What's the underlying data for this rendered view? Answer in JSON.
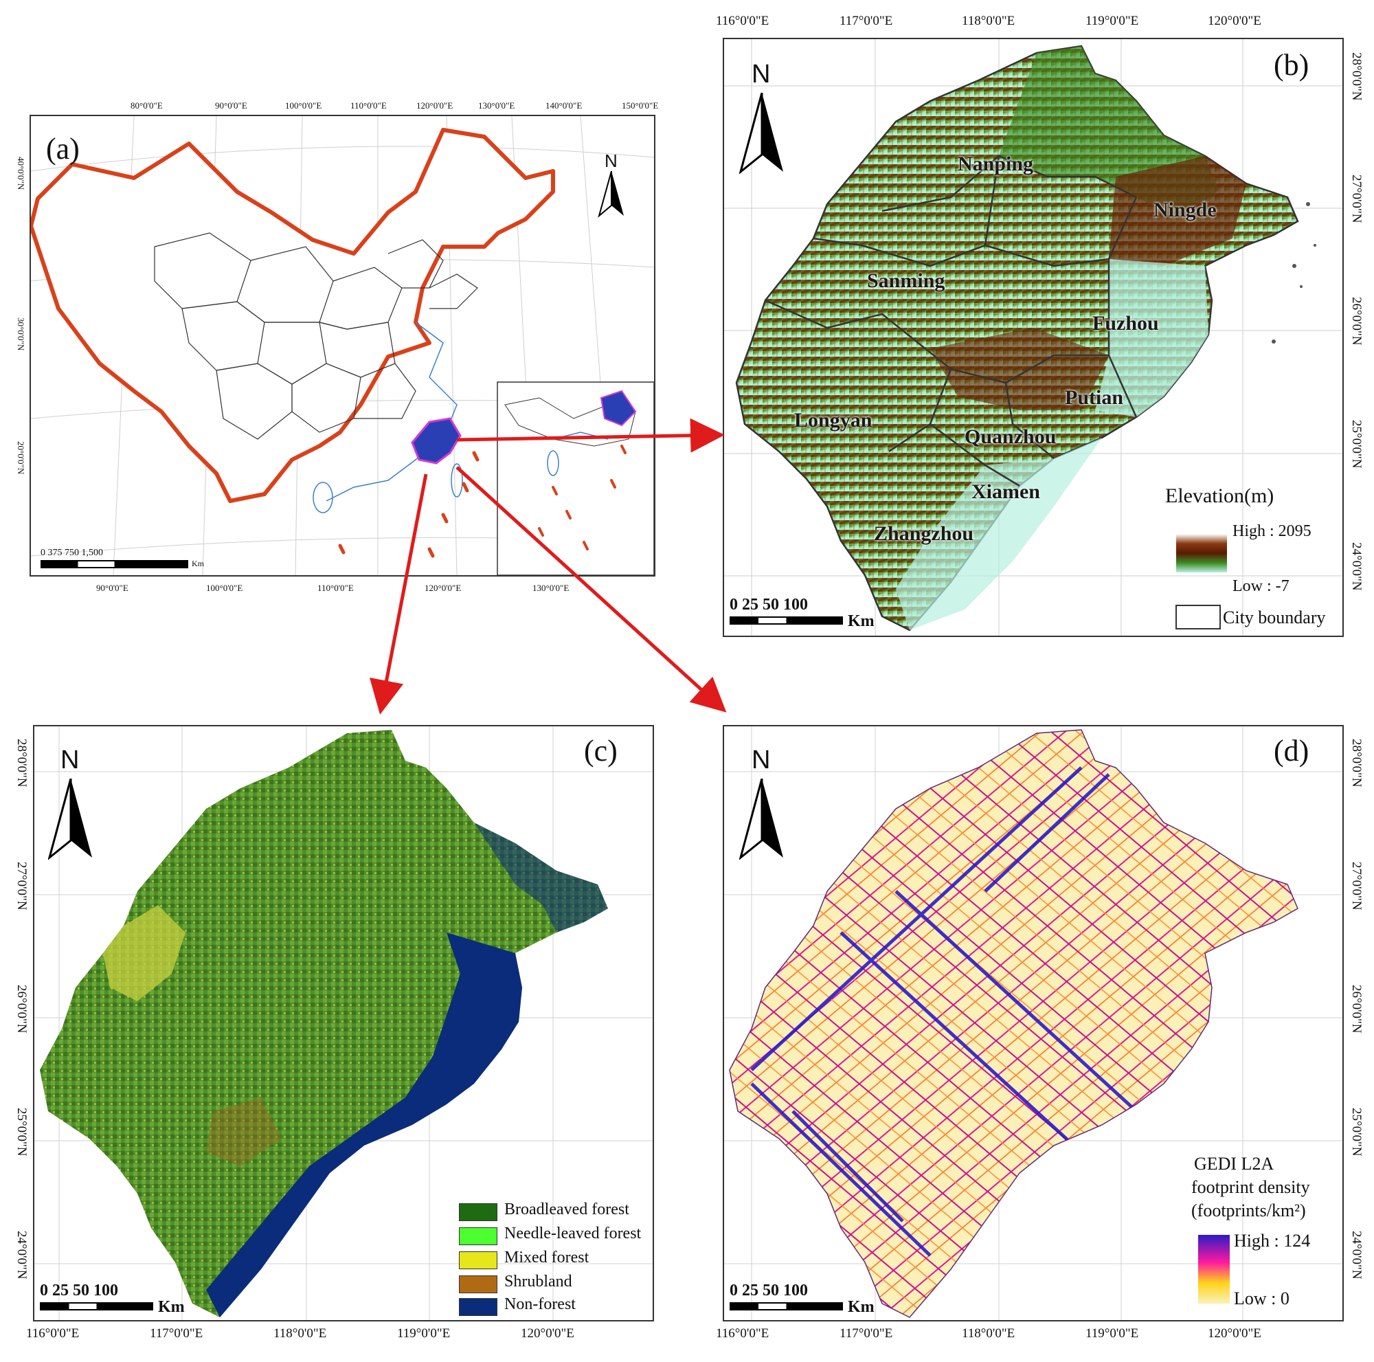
{
  "panel_a": {
    "label": "(a)",
    "top_ticks": [
      "80°0'0\"E",
      "90°0'0\"E",
      "100°0'0\"E",
      "110°0'0\"E",
      "120°0'0\"E",
      "130°0'0\"E",
      "140°0'0\"E",
      "150°0'0\"E"
    ],
    "bottom_ticks": [
      "90°0'0\"E",
      "100°0'0\"E",
      "110°0'0\"E",
      "120°0'0\"E",
      "130°0'0\"E"
    ],
    "left_ticks": [
      "40°0'0\"N",
      "30°0'0\"N",
      "20°0'0\"N"
    ],
    "north": "N",
    "scale_numbers": "0    375   750        1,500",
    "scale_unit": "Km"
  },
  "panel_b": {
    "label": "(b)",
    "top_ticks": [
      "116°0'0\"E",
      "117°0'0\"E",
      "118°0'0\"E",
      "119°0'0\"E",
      "120°0'0\"E"
    ],
    "right_ticks": [
      "28°0'0\"N",
      "27°0'0\"N",
      "26°0'0\"N",
      "25°0'0\"N",
      "24°0'0\"N"
    ],
    "north": "N",
    "cities": [
      "Nanping",
      "Ningde",
      "Sanming",
      "Fuzhou",
      "Putian",
      "Longyan",
      "Quanzhou",
      "Xiamen",
      "Zhangzhou"
    ],
    "legend_title": "Elevation(m)",
    "legend_high": "High : 2095",
    "legend_low": "Low : -7",
    "legend_boundary": "City boundary",
    "scale_numbers": "0  25  50        100",
    "scale_unit": "Km"
  },
  "panel_c": {
    "label": "(c)",
    "bottom_ticks": [
      "116°0'0\"E",
      "117°0'0\"E",
      "118°0'0\"E",
      "119°0'0\"E",
      "120°0'0\"E"
    ],
    "left_ticks": [
      "28°0'0\"N",
      "27°0'0\"N",
      "26°0'0\"N",
      "25°0'0\"N",
      "24°0'0\"N"
    ],
    "north": "N",
    "legend": [
      {
        "label": "Broadleaved forest",
        "color": "#1e6b12"
      },
      {
        "label": "Needle-leaved forest",
        "color": "#4dff2e"
      },
      {
        "label": "Mixed forest",
        "color": "#e6e61a"
      },
      {
        "label": "Shrubland",
        "color": "#b06a14"
      },
      {
        "label": "Non-forest",
        "color": "#0b2c7a"
      }
    ],
    "scale_numbers": "0  25  50        100",
    "scale_unit": "Km"
  },
  "panel_d": {
    "label": "(d)",
    "bottom_ticks": [
      "116°0'0\"E",
      "117°0'0\"E",
      "118°0'0\"E",
      "119°0'0\"E",
      "120°0'0\"E"
    ],
    "right_ticks": [
      "28°0'0\"N",
      "27°0'0\"N",
      "26°0'0\"N",
      "25°0'0\"N",
      "24°0'0\"N"
    ],
    "north": "N",
    "legend_title_1": "GEDI L2A",
    "legend_title_2": "footprint density",
    "legend_title_3": "(footprints/km²)",
    "legend_high": "High : 124",
    "legend_low": "Low : 0",
    "scale_numbers": "0  25  50        100",
    "scale_unit": "Km"
  },
  "colors": {
    "china_border": "#d9411b",
    "fujian_fill": "#2b3fb5",
    "arrow": "#e01b1b",
    "elev_high": "#ffffff",
    "elev_mid": "#7a2a08",
    "elev_low": "#b6efe0",
    "density_high": "#2b1bc8",
    "density_mid": "#ff1aa0",
    "density_low": "#fbf0b8",
    "non_forest": "#0b2c7a"
  }
}
